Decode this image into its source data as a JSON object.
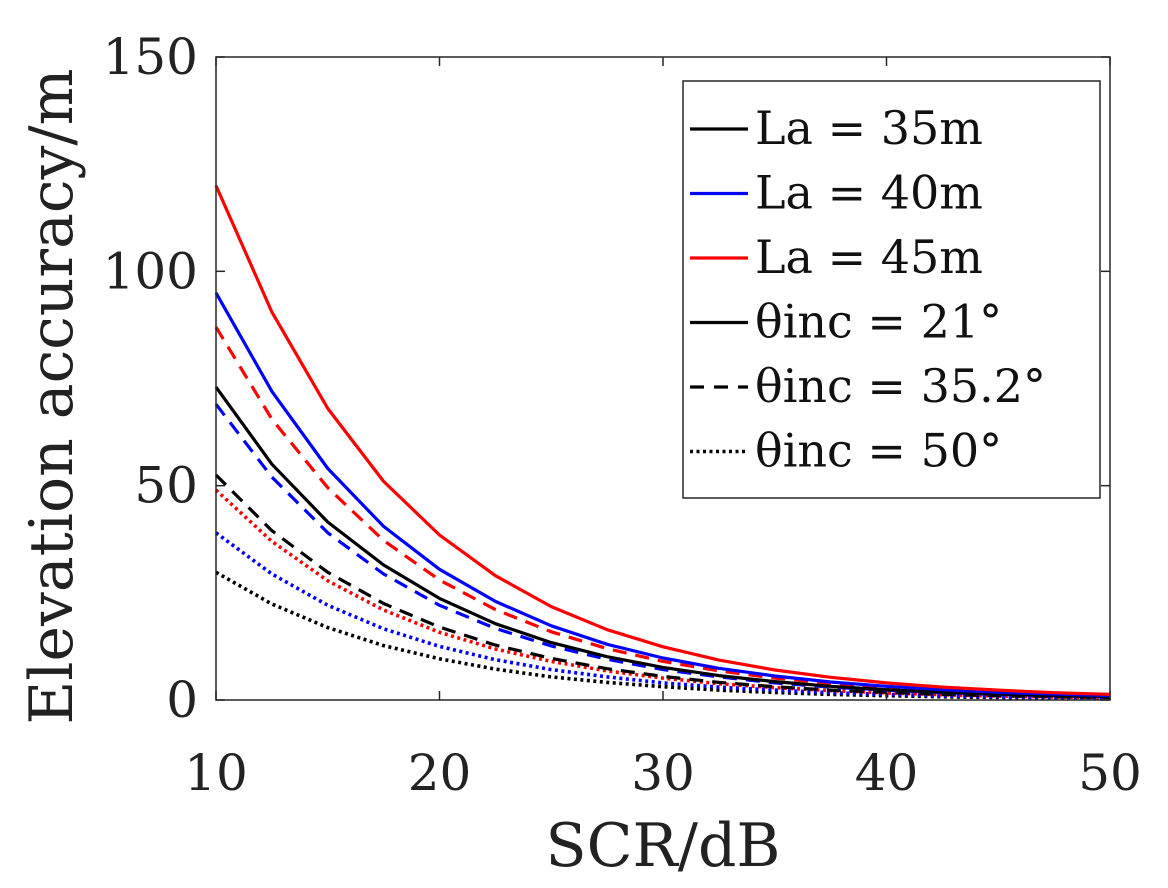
{
  "chart_data": {
    "type": "line",
    "title": "",
    "xlabel": "SCR/dB",
    "ylabel": "Elevation accuracy/m",
    "xlim": [
      10,
      50
    ],
    "ylim": [
      0,
      150
    ],
    "xticks": [
      10,
      20,
      30,
      40,
      50
    ],
    "yticks": [
      0,
      50,
      100,
      150
    ],
    "grid": false,
    "legend_position": "top-right",
    "x": [
      10,
      12.5,
      15,
      17.5,
      20,
      22.5,
      25,
      27.5,
      30,
      32.5,
      35,
      37.5,
      40,
      42.5,
      45,
      47.5,
      50
    ],
    "series": [
      {
        "name": "La = 35m, θinc = 21°",
        "color": "#000000",
        "style": "solid",
        "values": [
          73,
          55,
          41.5,
          31.5,
          23.7,
          17.8,
          13.4,
          10.1,
          7.6,
          5.7,
          4.3,
          3.2,
          2.4,
          1.8,
          1.4,
          1.0,
          0.8
        ]
      },
      {
        "name": "La = 40m, θinc = 21°",
        "color": "#0000ff",
        "style": "solid",
        "values": [
          95,
          72,
          54,
          40.5,
          30.5,
          23,
          17.3,
          13,
          9.8,
          7.4,
          5.6,
          4.2,
          3.2,
          2.4,
          1.8,
          1.4,
          1.0
        ]
      },
      {
        "name": "La = 45m, θinc = 21°",
        "color": "#ff0000",
        "style": "solid",
        "values": [
          120,
          90.5,
          68,
          51,
          38.5,
          29,
          21.8,
          16.4,
          12.4,
          9.3,
          7.0,
          5.3,
          4.0,
          3.0,
          2.3,
          1.7,
          1.3
        ]
      },
      {
        "name": "La = 35m, θinc = 35.2°",
        "color": "#000000",
        "style": "dashed",
        "values": [
          52.5,
          39.5,
          29.8,
          22.5,
          17,
          12.8,
          9.7,
          7.3,
          5.5,
          4.1,
          3.1,
          2.3,
          1.8,
          1.3,
          1.0,
          0.8,
          0.6
        ]
      },
      {
        "name": "La = 40m, θinc = 35.2°",
        "color": "#0000ff",
        "style": "dashed",
        "values": [
          69,
          52,
          39,
          29.4,
          22.1,
          16.7,
          12.6,
          9.5,
          7.1,
          5.4,
          4.0,
          3.0,
          2.3,
          1.7,
          1.3,
          1.0,
          0.75
        ]
      },
      {
        "name": "La = 45m, θinc = 35.2°",
        "color": "#ff0000",
        "style": "dashed",
        "values": [
          87,
          65.5,
          49.5,
          37.2,
          28,
          21.1,
          15.9,
          12,
          9.0,
          6.8,
          5.1,
          3.9,
          2.9,
          2.2,
          1.7,
          1.25,
          0.95
        ]
      },
      {
        "name": "La = 35m, θinc = 50°",
        "color": "#000000",
        "style": "dotted",
        "values": [
          29.8,
          22.4,
          16.9,
          12.7,
          9.6,
          7.2,
          5.4,
          4.1,
          3.1,
          2.3,
          1.75,
          1.3,
          1.0,
          0.75,
          0.56,
          0.42,
          0.32
        ]
      },
      {
        "name": "La = 40m, θinc = 50°",
        "color": "#0000ff",
        "style": "dotted",
        "values": [
          39,
          29.4,
          22.1,
          16.6,
          12.5,
          9.4,
          7.1,
          5.4,
          4.0,
          3.0,
          2.3,
          1.7,
          1.3,
          1.0,
          0.74,
          0.56,
          0.42
        ]
      },
      {
        "name": "La = 45m, θinc = 50°",
        "color": "#ff0000",
        "style": "dotted",
        "values": [
          49,
          37,
          27.8,
          21,
          15.8,
          11.9,
          9.0,
          6.8,
          5.1,
          3.8,
          2.9,
          2.2,
          1.65,
          1.24,
          0.93,
          0.7,
          0.53
        ]
      }
    ],
    "legend": [
      {
        "label": "La = 35m",
        "color": "#000000",
        "style": "solid"
      },
      {
        "label": "La = 40m",
        "color": "#0000ff",
        "style": "solid"
      },
      {
        "label": "La = 45m",
        "color": "#ff0000",
        "style": "solid"
      },
      {
        "label": "θinc = 21°",
        "color": "#000000",
        "style": "solid"
      },
      {
        "label": "θinc = 35.2°",
        "color": "#000000",
        "style": "dashed"
      },
      {
        "label": "θinc = 50°",
        "color": "#000000",
        "style": "dotted"
      }
    ]
  }
}
